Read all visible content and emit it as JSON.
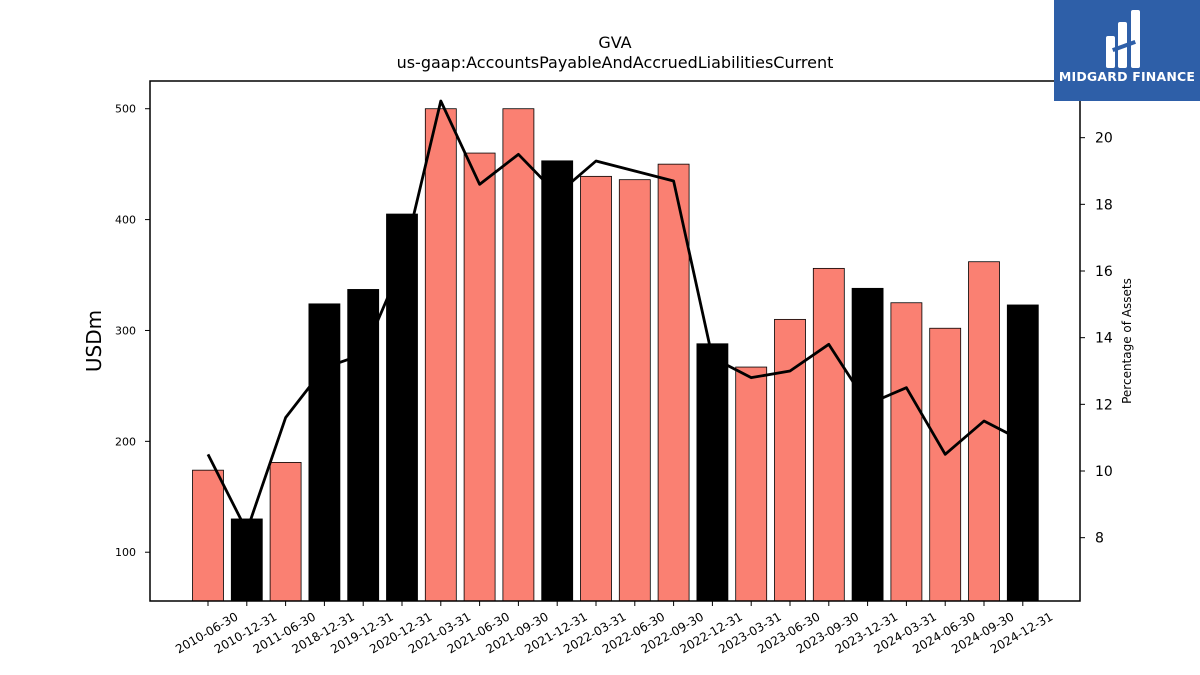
{
  "chart_data": {
    "type": "bar",
    "title": "GVA",
    "subtitle": "us-gaap:AccountsPayableAndAccruedLiabilitiesCurrent",
    "ylabel": "USDm",
    "y2label": "Percentage of Assets",
    "ylim": [
      56,
      525
    ],
    "y2lim": [
      6.1,
      21.7
    ],
    "yticks": [
      100,
      200,
      300,
      400,
      500
    ],
    "y2ticks": [
      8,
      10,
      12,
      14,
      16,
      18,
      20
    ],
    "categories": [
      "2010-06-30",
      "2010-12-31",
      "2011-06-30",
      "2018-12-31",
      "2019-12-31",
      "2020-12-31",
      "2021-03-31",
      "2021-06-30",
      "2021-09-30",
      "2021-12-31",
      "2022-03-31",
      "2022-06-30",
      "2022-09-30",
      "2022-12-31",
      "2023-03-31",
      "2023-06-30",
      "2023-09-30",
      "2023-12-31",
      "2024-03-31",
      "2024-06-30",
      "2024-09-30",
      "2024-12-31"
    ],
    "series": [
      {
        "type": "bar",
        "axis": "left",
        "values": [
          174,
          130,
          181,
          324,
          337,
          405,
          500,
          460,
          500,
          453,
          439,
          436,
          450,
          288,
          267,
          310,
          356,
          338,
          325,
          302,
          362,
          323
        ]
      },
      {
        "type": "line",
        "axis": "right",
        "values": [
          10.5,
          8.2,
          11.6,
          13.1,
          13.5,
          16.2,
          21.1,
          18.6,
          19.5,
          18.3,
          19.3,
          19.0,
          18.7,
          13.4,
          12.8,
          13.0,
          13.8,
          12.0,
          12.5,
          10.5,
          11.5,
          10.9
        ]
      }
    ],
    "bar_colors": [
      "#fa8072",
      "#000000",
      "#fa8072",
      "#000000",
      "#000000",
      "#000000",
      "#fa8072",
      "#fa8072",
      "#fa8072",
      "#000000",
      "#fa8072",
      "#fa8072",
      "#fa8072",
      "#000000",
      "#fa8072",
      "#fa8072",
      "#fa8072",
      "#000000",
      "#fa8072",
      "#fa8072",
      "#fa8072",
      "#000000"
    ],
    "line_color": "#000000",
    "grid": false,
    "legend": "none"
  },
  "logo": {
    "text": "MIDGARD FINANCE",
    "background": "#2e5fa8",
    "icon": "midgard-logo-icon"
  }
}
